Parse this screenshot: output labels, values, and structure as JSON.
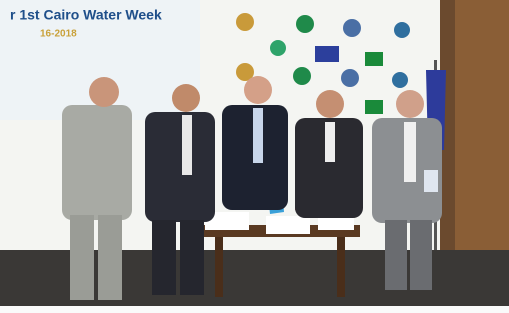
{
  "banner": {
    "title": "r 1st Cairo Water Week",
    "dates": "16-2018"
  }
}
